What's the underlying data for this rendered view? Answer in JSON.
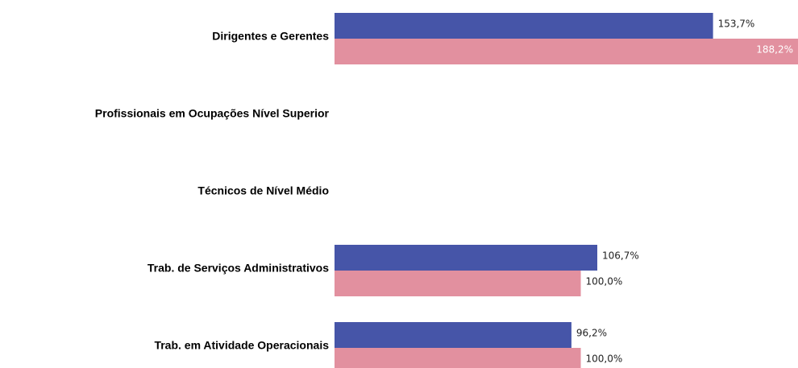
{
  "chart_data": {
    "type": "bar",
    "orientation": "horizontal",
    "categories": [
      "Dirigentes e Gerentes",
      "Profissionais em Ocupações Nível Superior",
      "Técnicos de Nível Médio",
      "Trab. de Serviços Administrativos",
      "Trab. em Atividade Operacionais"
    ],
    "series": [
      {
        "color": "#4655a8",
        "values": [
          153.7,
          null,
          null,
          106.7,
          96.2
        ],
        "value_labels": [
          "153,7%",
          null,
          null,
          "106,7%",
          "96,2%"
        ]
      },
      {
        "color": "#e2909f",
        "values": [
          188.2,
          null,
          null,
          100.0,
          100.0
        ],
        "value_labels": [
          "188,2%",
          null,
          null,
          "100,0%",
          "100,0%"
        ]
      }
    ]
  }
}
